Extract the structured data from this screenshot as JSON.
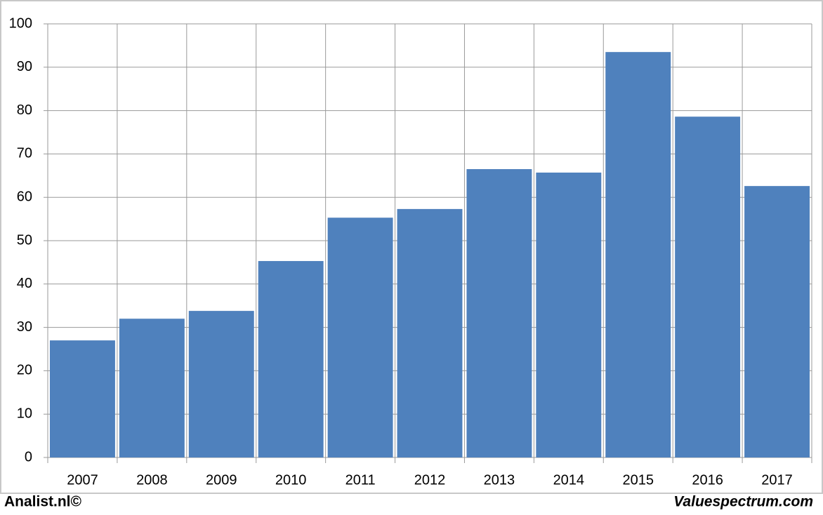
{
  "chart_data": {
    "type": "bar",
    "categories": [
      "2007",
      "2008",
      "2009",
      "2010",
      "2011",
      "2012",
      "2013",
      "2014",
      "2015",
      "2016",
      "2017"
    ],
    "values": [
      27,
      32,
      33.8,
      45.3,
      55.3,
      57.3,
      66.5,
      65.7,
      93.5,
      78.6,
      62.6
    ],
    "color": "#4f81bd",
    "ylim": [
      0,
      100
    ],
    "yticks": [
      0,
      10,
      20,
      30,
      40,
      50,
      60,
      70,
      80,
      90,
      100
    ],
    "grid": true
  },
  "footer": {
    "left": "Analist.nl©",
    "right": "Valuespectrum.com"
  }
}
